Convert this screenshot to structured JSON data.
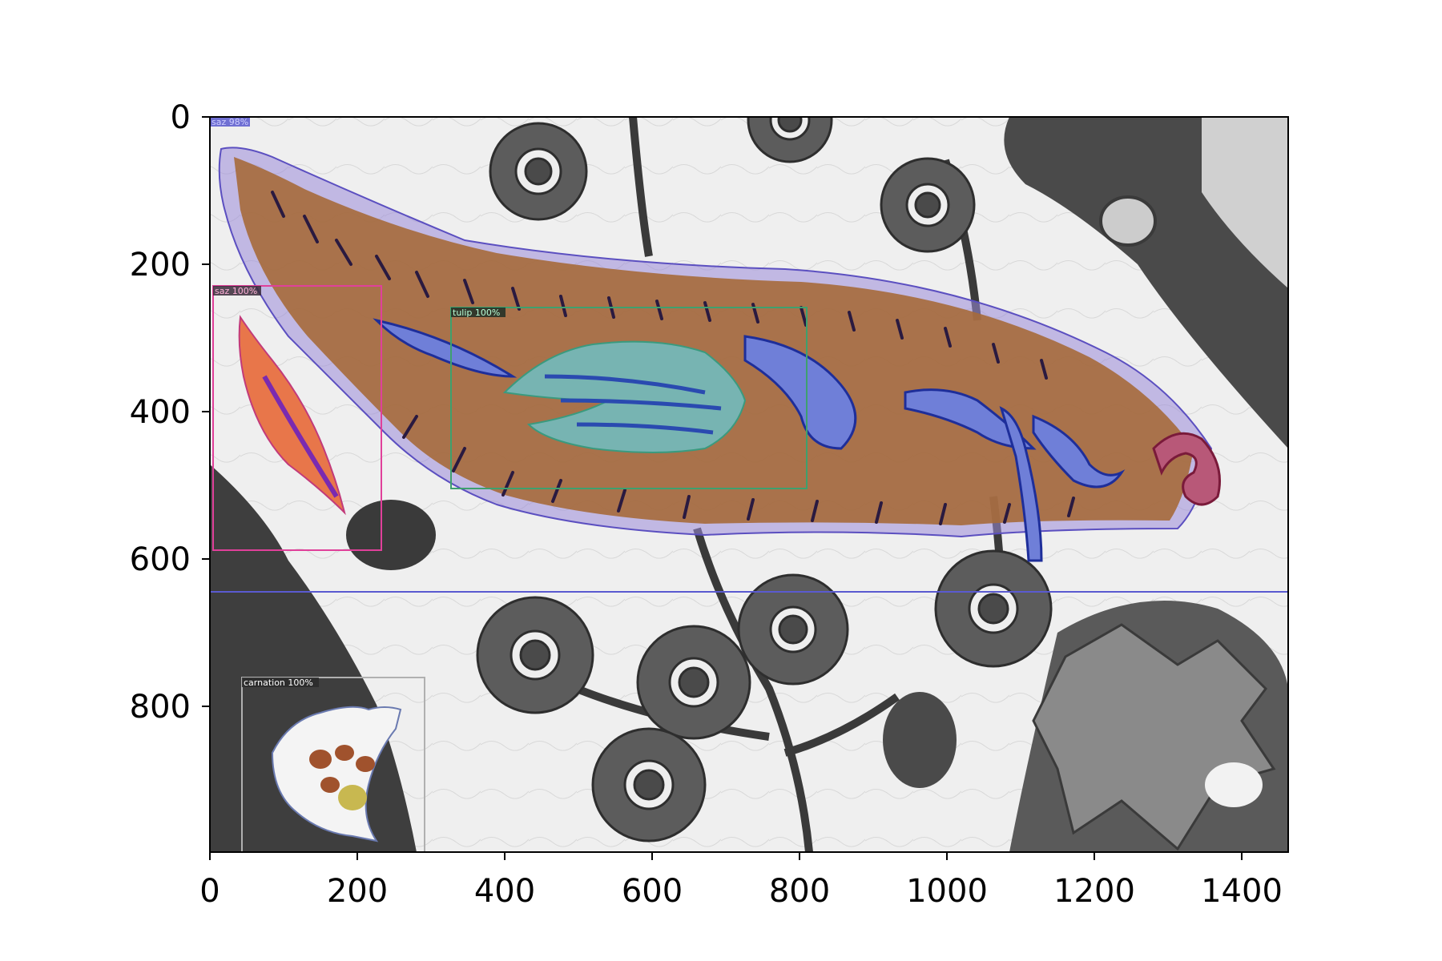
{
  "figure": {
    "image_description_hidden": "",
    "x_ticks": [
      "0",
      "200",
      "400",
      "600",
      "800",
      "1000",
      "1200",
      "1400"
    ],
    "y_ticks": [
      "0",
      "200",
      "400",
      "600",
      "800"
    ],
    "detections": [
      {
        "label": "saz 98%",
        "color": "#3b3bc8"
      },
      {
        "label": "saz 100%",
        "color": "#e0409a"
      },
      {
        "label": "tulip 100%",
        "color": "#3ea06e"
      },
      {
        "label": "carnation 100%",
        "color": "#b0b0b0"
      }
    ]
  }
}
